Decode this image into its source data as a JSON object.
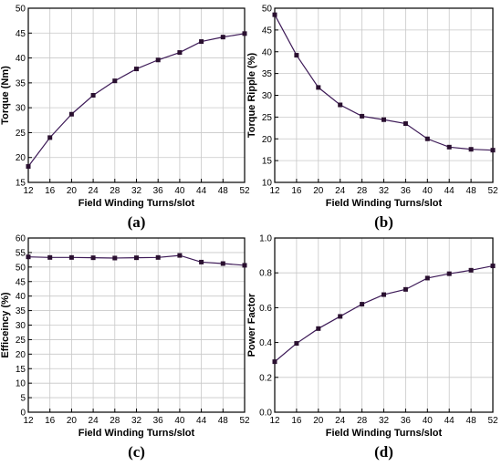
{
  "chart_data": [
    {
      "type": "line",
      "panel_label": "(a)",
      "xlabel": "Field Winding Turns/slot",
      "ylabel": "Torque (Nm)",
      "x": [
        12,
        16,
        20,
        24,
        28,
        32,
        36,
        40,
        44,
        48,
        52
      ],
      "values": [
        18.2,
        24.0,
        28.7,
        32.5,
        35.4,
        37.8,
        39.6,
        41.1,
        43.3,
        44.2,
        44.9
      ],
      "xlim": [
        12,
        52
      ],
      "ylim": [
        15,
        50
      ],
      "xticks": [
        "12",
        "16",
        "20",
        "24",
        "28",
        "32",
        "36",
        "40",
        "44",
        "48",
        "52"
      ],
      "yticks": [
        "15",
        "20",
        "25",
        "30",
        "35",
        "40",
        "45",
        "50"
      ],
      "grid": true,
      "color": "#3d1a57"
    },
    {
      "type": "line",
      "panel_label": "(b)",
      "xlabel": "Field Winding Turns/slot",
      "ylabel": "Torque Ripple (%)",
      "x": [
        12,
        16,
        20,
        24,
        28,
        32,
        36,
        40,
        44,
        48,
        52
      ],
      "values": [
        48.5,
        39.2,
        31.8,
        27.8,
        25.2,
        24.4,
        23.5,
        20.0,
        18.1,
        17.6,
        17.4
      ],
      "xlim": [
        12,
        52
      ],
      "ylim": [
        10,
        50
      ],
      "xticks": [
        "12",
        "16",
        "20",
        "24",
        "28",
        "32",
        "36",
        "40",
        "44",
        "48",
        "52"
      ],
      "yticks": [
        "10",
        "15",
        "20",
        "25",
        "30",
        "35",
        "40",
        "45",
        "50"
      ],
      "grid": true,
      "color": "#3d1a57"
    },
    {
      "type": "line",
      "panel_label": "(c)",
      "xlabel": "Field Winding Turns/slot",
      "ylabel": "Efficeincy (%)",
      "x": [
        12,
        16,
        20,
        24,
        28,
        32,
        36,
        40,
        44,
        48,
        52
      ],
      "values": [
        53.5,
        53.3,
        53.3,
        53.2,
        53.1,
        53.2,
        53.3,
        54.0,
        51.7,
        51.2,
        50.6
      ],
      "xlim": [
        12,
        52
      ],
      "ylim": [
        0,
        60
      ],
      "xticks": [
        "12",
        "16",
        "20",
        "24",
        "28",
        "32",
        "36",
        "40",
        "44",
        "48",
        "52"
      ],
      "yticks": [
        "0",
        "5",
        "10",
        "15",
        "20",
        "25",
        "30",
        "35",
        "40",
        "45",
        "50",
        "55",
        "60"
      ],
      "grid": true,
      "color": "#3d1a57"
    },
    {
      "type": "line",
      "panel_label": "(d)",
      "xlabel": "Field Winding Turns/slot",
      "ylabel": "Power Factor",
      "x": [
        12,
        16,
        20,
        24,
        28,
        32,
        36,
        40,
        44,
        48,
        52
      ],
      "values": [
        0.29,
        0.395,
        0.48,
        0.55,
        0.62,
        0.675,
        0.705,
        0.77,
        0.795,
        0.815,
        0.84
      ],
      "xlim": [
        12,
        52
      ],
      "ylim": [
        0,
        1.0
      ],
      "xticks": [
        "12",
        "16",
        "20",
        "24",
        "28",
        "32",
        "36",
        "40",
        "44",
        "48",
        "52"
      ],
      "yticks": [
        "0.0",
        "0.2",
        "0.4",
        "0.6",
        "0.8",
        "1.0"
      ],
      "grid": true,
      "color": "#3d1a57"
    }
  ]
}
